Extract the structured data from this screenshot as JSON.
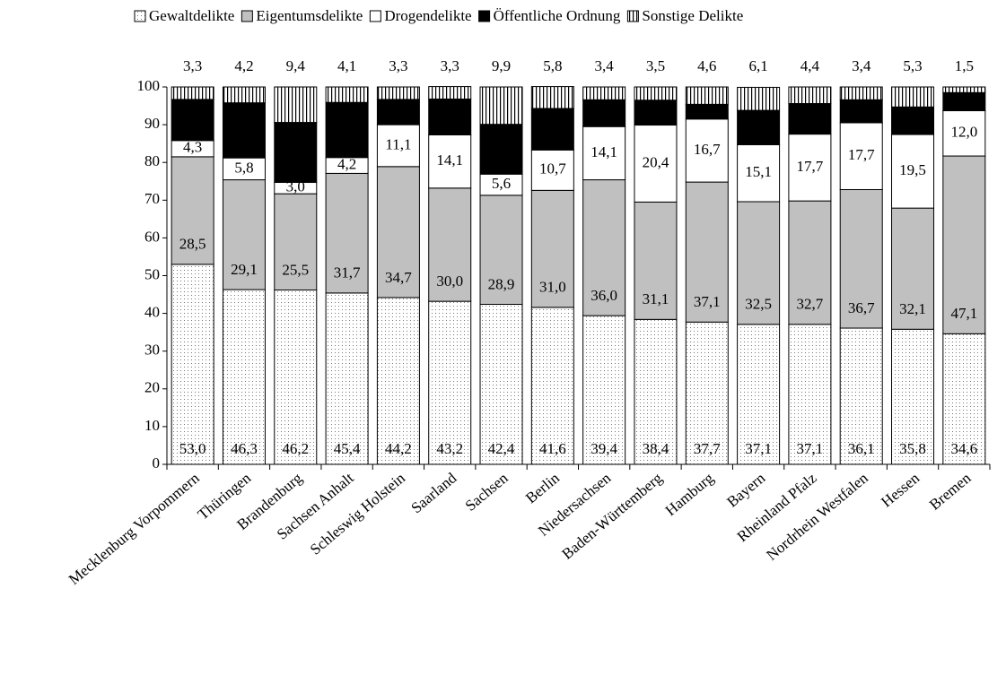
{
  "chart_data": {
    "type": "stacked-bar",
    "categories": [
      "Mecklenburg Vorpommern",
      "Thüringen",
      "Brandenburg",
      "Sachsen Anhalt",
      "Schleswig Holstein",
      "Saarland",
      "Sachsen",
      "Berlin",
      "Niedersachsen",
      "Baden-Württemberg",
      "Hamburg",
      "Bayern",
      "Rheinland Pfalz",
      "Nordrhein Westfalen",
      "Hessen",
      "Bremen"
    ],
    "series": [
      {
        "name": "Gewaltdelikte",
        "color": "dots",
        "values": [
          53.0,
          46.3,
          46.2,
          45.4,
          44.2,
          43.2,
          42.4,
          41.6,
          39.4,
          38.4,
          37.7,
          37.1,
          37.1,
          36.1,
          35.8,
          34.6
        ],
        "value_labels": [
          "53,0",
          "46,3",
          "46,2",
          "45,4",
          "44,2",
          "43,2",
          "42,4",
          "41,6",
          "39,4",
          "38,4",
          "37,7",
          "37,1",
          "37,1",
          "36,1",
          "35,8",
          "34,6"
        ]
      },
      {
        "name": "Eigentumsdelikte",
        "color": "#c0c0c0",
        "values": [
          28.5,
          29.1,
          25.5,
          31.7,
          34.7,
          30.0,
          28.9,
          31.0,
          36.0,
          31.1,
          37.1,
          32.5,
          32.7,
          36.7,
          32.1,
          47.1
        ],
        "value_labels": [
          "28,5",
          "29,1",
          "25,5",
          "31,7",
          "34,7",
          "30,0",
          "28,9",
          "31,0",
          "36,0",
          "31,1",
          "37,1",
          "32,5",
          "32,7",
          "36,7",
          "32,1",
          "47,1"
        ]
      },
      {
        "name": "Drogendelikte",
        "color": "#ffffff",
        "values": [
          4.3,
          5.8,
          3.0,
          4.2,
          11.1,
          14.1,
          5.6,
          10.7,
          14.1,
          20.4,
          16.7,
          15.1,
          17.7,
          17.7,
          19.5,
          12.0
        ],
        "value_labels": [
          "4,3",
          "5,8",
          "3,0",
          "4,2",
          "11,1",
          "14,1",
          "5,6",
          "10,7",
          "14,1",
          "20,4",
          "16,7",
          "15,1",
          "17,7",
          "17,7",
          "19,5",
          "12,0"
        ]
      },
      {
        "name": "Öffentliche Ordnung",
        "color": "#000000",
        "values": [
          10.9,
          14.6,
          15.9,
          14.6,
          6.7,
          9.5,
          13.2,
          11.0,
          7.1,
          6.6,
          3.9,
          9.1,
          8.1,
          6.1,
          7.3,
          4.8
        ],
        "value_labels": [
          "10,9",
          "14,6",
          "15,9",
          "14,6",
          "6,7",
          "9,5",
          "13,2",
          "11,0",
          "7,1",
          "6,6",
          "3,9",
          "9,1",
          "8,1",
          "6,1",
          "7,3",
          "4,8"
        ]
      },
      {
        "name": "Sonstige Delikte",
        "color": "stripes",
        "values": [
          3.3,
          4.2,
          9.4,
          4.1,
          3.3,
          3.3,
          9.9,
          5.8,
          3.4,
          3.5,
          4.6,
          6.1,
          4.4,
          3.4,
          5.3,
          1.5
        ],
        "value_labels": [
          "3,3",
          "4,2",
          "9,4",
          "4,1",
          "3,3",
          "3,3",
          "9,9",
          "5,8",
          "3,4",
          "3,5",
          "4,6",
          "6,1",
          "4,4",
          "3,4",
          "5,3",
          "1,5"
        ]
      }
    ],
    "ylim": [
      0,
      100
    ],
    "yticks": [
      0,
      10,
      20,
      30,
      40,
      50,
      60,
      70,
      80,
      90,
      100
    ]
  }
}
